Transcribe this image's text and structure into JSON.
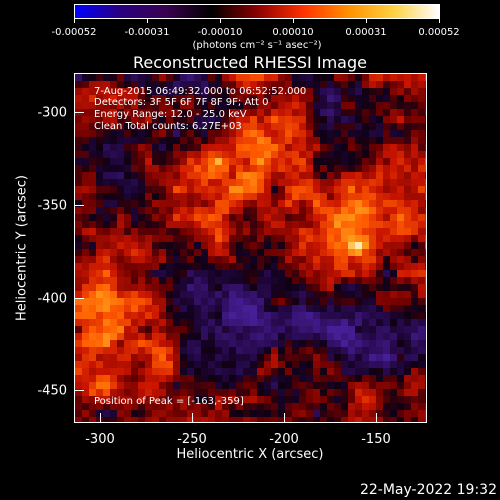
{
  "colorbar": {
    "tick_labels": [
      "-0.00052",
      "-0.00031",
      "-0.00010",
      "0.00010",
      "0.00031",
      "0.00052"
    ],
    "units_label": "(photons cm⁻² s⁻¹ asec⁻²)",
    "colors": [
      "#0000ff",
      "#2a0080",
      "#3a0050",
      "#000000",
      "#8a0000",
      "#ff3000",
      "#ff9000",
      "#ffd040",
      "#ffffff"
    ]
  },
  "title": "Reconstructed RHESSI Image",
  "info": {
    "line1": "7-Aug-2015 06:49:32.000 to 06:52:52.000",
    "line2": "Detectors: 3F 5F 6F 7F 8F 9F; Att 0",
    "line3": "Energy Range: 12.0 - 25.0 keV",
    "line4": "Clean     Total counts: 6.27E+03",
    "peak": "Position of Peak = [-163,-359]"
  },
  "x_axis": {
    "title": "Heliocentric X (arcsec)",
    "ticks": [
      "-300",
      "-250",
      "-200",
      "-150"
    ]
  },
  "y_axis": {
    "title": "Heliocentric Y (arcsec)",
    "ticks": [
      "-300",
      "-350",
      "-400",
      "-450"
    ]
  },
  "timestamp": "22-May-2022 19:32"
}
